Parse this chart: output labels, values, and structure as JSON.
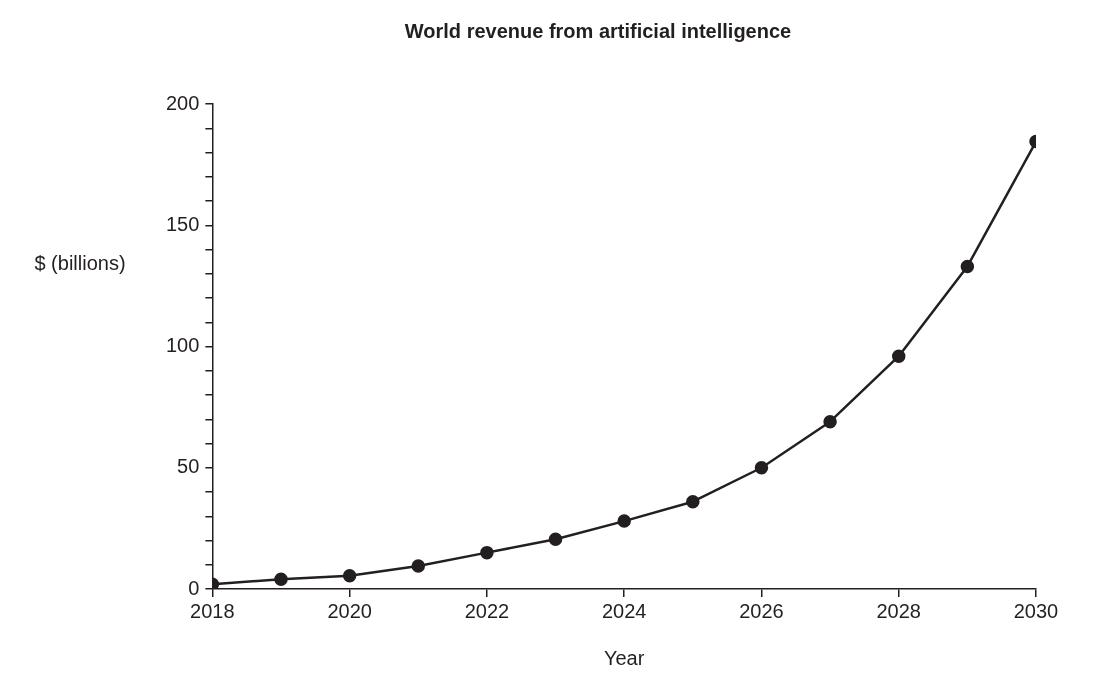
{
  "chart_data": {
    "type": "line",
    "title": "World revenue from artificial intelligence",
    "xlabel": "Year",
    "ylabel": "$ (billions)",
    "x": [
      2018,
      2019,
      2020,
      2021,
      2022,
      2023,
      2024,
      2025,
      2026,
      2027,
      2028,
      2029,
      2030
    ],
    "series": [
      {
        "color": "#231f20",
        "values": [
          2,
          4,
          5.5,
          9.5,
          15,
          20.5,
          28,
          36,
          50,
          69,
          96,
          133,
          184.5
        ]
      }
    ],
    "xlim": [
      2018,
      2030
    ],
    "xticks": [
      2018,
      2020,
      2022,
      2024,
      2026,
      2028,
      2030
    ],
    "ylim": [
      0,
      200
    ],
    "yticks": [
      0,
      {
        "value": 10,
        "label": null
      },
      {
        "value": 20,
        "label": null
      },
      {
        "value": 30,
        "label": null
      },
      {
        "value": 40,
        "label": null
      },
      50,
      {
        "value": 60,
        "label": null
      },
      {
        "value": 70,
        "label": null
      },
      {
        "value": 80,
        "label": null
      },
      {
        "value": 90,
        "label": null
      },
      100,
      {
        "value": 110,
        "label": null
      },
      {
        "value": 120,
        "label": null
      },
      {
        "value": 130,
        "label": null
      },
      {
        "value": 140,
        "label": null
      },
      150,
      {
        "value": 160,
        "label": null
      },
      {
        "value": 170,
        "label": null
      },
      {
        "value": 180,
        "label": null
      },
      {
        "value": 190,
        "label": null
      },
      200
    ],
    "marker": "circle",
    "line_style": "solid",
    "legend": false
  }
}
